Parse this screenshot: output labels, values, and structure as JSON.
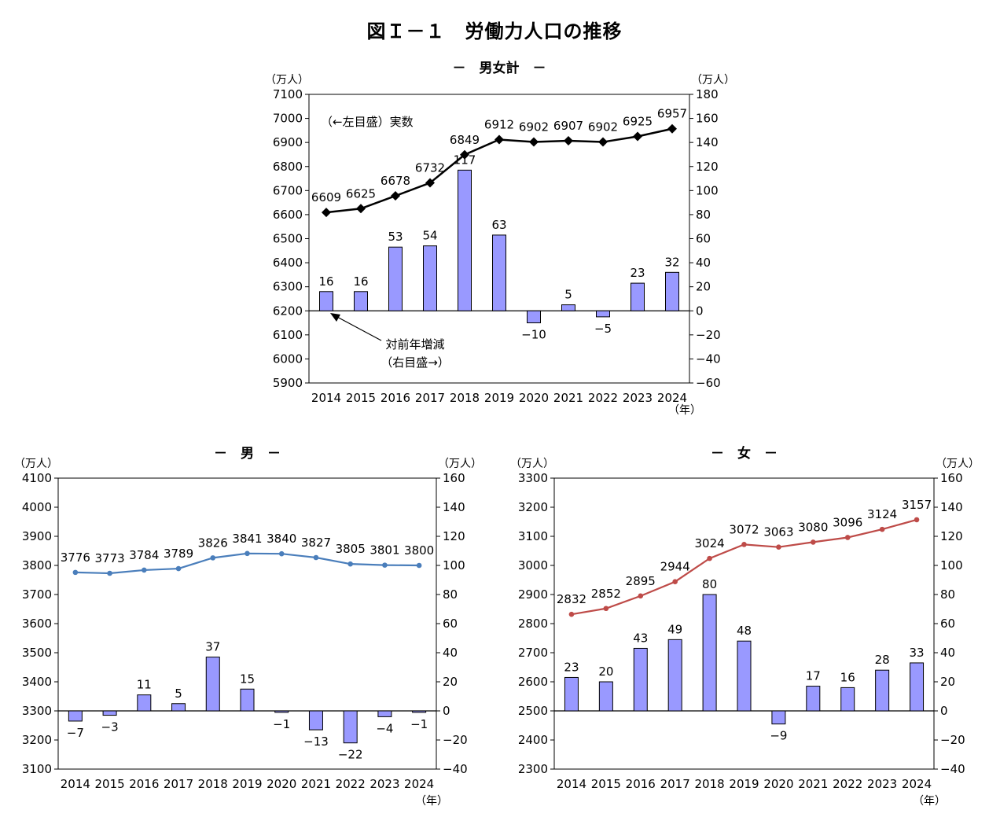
{
  "title": "図Ｉ－１　労働力人口の推移",
  "chart_data": [
    {
      "id": "total",
      "type": "bar+line",
      "title": "－　男女計　－",
      "ylabel_left": "（万人）",
      "ylabel_right": "（万人）",
      "xlabel": "（年）",
      "categories": [
        "2014",
        "2015",
        "2016",
        "2017",
        "2018",
        "2019",
        "2020",
        "2021",
        "2022",
        "2023",
        "2024"
      ],
      "y_left_ticks": [
        "7100",
        "7000",
        "6900",
        "6800",
        "6700",
        "6600",
        "6500",
        "6400",
        "6300",
        "6200",
        "6100",
        "6000",
        "5900"
      ],
      "y_right_ticks": [
        "180",
        "160",
        "140",
        "120",
        "100",
        "80",
        "60",
        "40",
        "20",
        "0",
        "−20",
        "−40",
        "−60"
      ],
      "ylim_left": [
        5900,
        7100
      ],
      "ylim_right": [
        -60,
        180
      ],
      "series": [
        {
          "name": "実数",
          "axis": "left",
          "kind": "line",
          "color": "#000000",
          "marker": "diamond",
          "values": [
            6609,
            6625,
            6678,
            6732,
            6849,
            6912,
            6902,
            6907,
            6902,
            6925,
            6957
          ],
          "labels": [
            "6609",
            "6625",
            "6678",
            "6732",
            "6849",
            "6912",
            "6902",
            "6907",
            "6902",
            "6925",
            "6957"
          ]
        },
        {
          "name": "対前年増減",
          "axis": "right",
          "kind": "bar",
          "color": "#9999ff",
          "values": [
            16,
            16,
            53,
            54,
            117,
            63,
            -10,
            5,
            -5,
            23,
            32
          ],
          "labels": [
            "16",
            "16",
            "53",
            "54",
            "117",
            "63",
            "−10",
            "5",
            "−5",
            "23",
            "32"
          ]
        }
      ],
      "annotations": {
        "line_note": "（←左目盛）実数",
        "bar_note_1": "対前年増減",
        "bar_note_2": "（右目盛→）"
      }
    },
    {
      "id": "male",
      "type": "bar+line",
      "title": "－　男　－",
      "ylabel_left": "（万人）",
      "ylabel_right": "（万人）",
      "xlabel": "（年）",
      "categories": [
        "2014",
        "2015",
        "2016",
        "2017",
        "2018",
        "2019",
        "2020",
        "2021",
        "2022",
        "2023",
        "2024"
      ],
      "y_left_ticks": [
        "4100",
        "4000",
        "3900",
        "3800",
        "3700",
        "3600",
        "3500",
        "3400",
        "3300",
        "3200",
        "3100"
      ],
      "y_right_ticks": [
        "160",
        "140",
        "120",
        "100",
        "80",
        "60",
        "40",
        "20",
        "0",
        "−20",
        "−40"
      ],
      "ylim_left": [
        3100,
        4100
      ],
      "ylim_right": [
        -40,
        160
      ],
      "series": [
        {
          "kind": "line",
          "axis": "left",
          "color": "#4a7ebb",
          "marker": "circle",
          "values": [
            3776,
            3773,
            3784,
            3789,
            3826,
            3841,
            3840,
            3827,
            3805,
            3801,
            3800
          ],
          "labels": [
            "3776",
            "3773",
            "3784",
            "3789",
            "3826",
            "3841",
            "3840",
            "3827",
            "3805",
            "3801",
            "3800"
          ]
        },
        {
          "kind": "bar",
          "axis": "right",
          "color": "#9999ff",
          "values": [
            -7,
            -3,
            11,
            5,
            37,
            15,
            -1,
            -13,
            -22,
            -4,
            -1
          ],
          "labels": [
            "−7",
            "−3",
            "11",
            "5",
            "37",
            "15",
            "−1",
            "−13",
            "−22",
            "−4",
            "−1"
          ]
        }
      ]
    },
    {
      "id": "female",
      "type": "bar+line",
      "title": "－　女　－",
      "ylabel_left": "（万人）",
      "ylabel_right": "（万人）",
      "xlabel": "（年）",
      "categories": [
        "2014",
        "2015",
        "2016",
        "2017",
        "2018",
        "2019",
        "2020",
        "2021",
        "2022",
        "2023",
        "2024"
      ],
      "y_left_ticks": [
        "3300",
        "3200",
        "3100",
        "3000",
        "2900",
        "2800",
        "2700",
        "2600",
        "2500",
        "2400",
        "2300"
      ],
      "y_right_ticks": [
        "160",
        "140",
        "120",
        "100",
        "80",
        "60",
        "40",
        "20",
        "0",
        "−20",
        "−40"
      ],
      "ylim_left": [
        2300,
        3300
      ],
      "ylim_right": [
        -40,
        160
      ],
      "series": [
        {
          "kind": "line",
          "axis": "left",
          "color": "#be4b48",
          "marker": "circle",
          "values": [
            2832,
            2852,
            2895,
            2944,
            3024,
            3072,
            3063,
            3080,
            3096,
            3124,
            3157
          ],
          "labels": [
            "2832",
            "2852",
            "2895",
            "2944",
            "3024",
            "3072",
            "3063",
            "3080",
            "3096",
            "3124",
            "3157"
          ]
        },
        {
          "kind": "bar",
          "axis": "right",
          "color": "#9999ff",
          "values": [
            23,
            20,
            43,
            49,
            80,
            48,
            -9,
            17,
            16,
            28,
            33
          ],
          "labels": [
            "23",
            "20",
            "43",
            "49",
            "80",
            "48",
            "−9",
            "17",
            "16",
            "28",
            "33"
          ]
        }
      ]
    }
  ]
}
